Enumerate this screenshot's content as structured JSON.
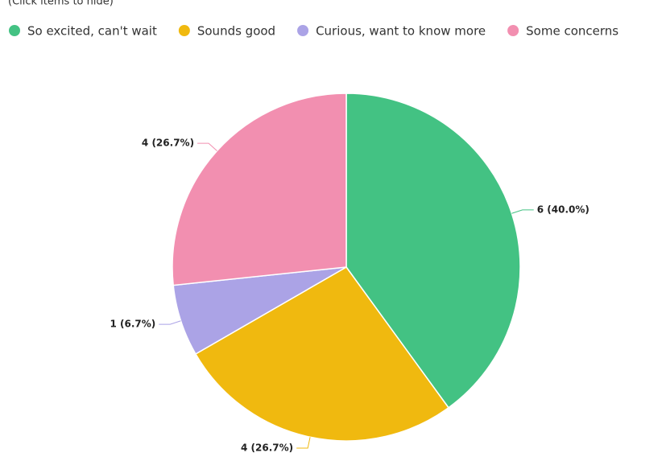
{
  "chart_data": {
    "type": "pie",
    "note": "(Click items to hide)",
    "categories": [
      "So excited, can't wait",
      "Sounds good",
      "Curious, want to know more",
      "Some concerns"
    ],
    "values": [
      6,
      4,
      1,
      4
    ],
    "value_labels": [
      "6 (40.0%)",
      "4 (26.7%)",
      "1 (6.7%)",
      "4 (26.7%)"
    ],
    "colors": [
      "#43c283",
      "#f0b90f",
      "#aba3e6",
      "#f28fb0"
    ],
    "legend": "top"
  }
}
